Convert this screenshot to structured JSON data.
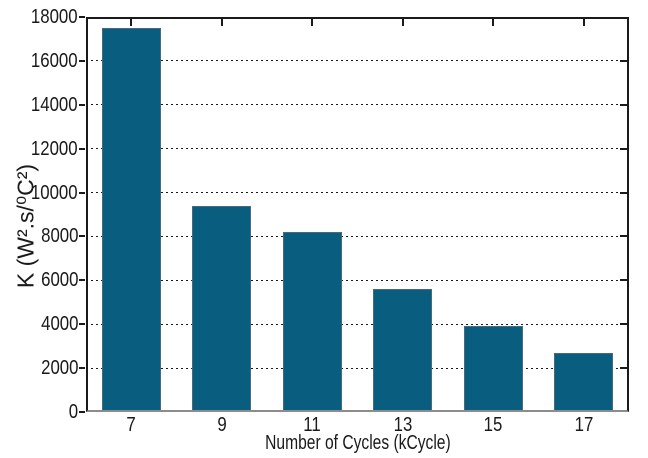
{
  "figure": {
    "background": "#ffffff"
  },
  "chart_data": {
    "type": "bar",
    "title": "",
    "xlabel": "Number of Cycles (kCycle)",
    "ylabel": "K (W².s/⁰C²)",
    "categories": [
      "7",
      "9",
      "11",
      "13",
      "15",
      "17"
    ],
    "values": [
      17500,
      9400,
      8200,
      5600,
      3900,
      2700
    ],
    "ylim": [
      0,
      18000
    ],
    "ytick_step": 2000,
    "ytick_labels": [
      "0",
      "2000",
      "4000",
      "6000",
      "8000",
      "10000",
      "12000",
      "14000",
      "16000",
      "18000"
    ],
    "grid": "horizontal-dashed",
    "legend": "none",
    "bar_width_fraction": 0.65,
    "bar_color": "#095d7f",
    "bar_edge_color": "#476b7d",
    "axis_color": "#1a1a1a",
    "baseline_color": "#8c8c8c",
    "text_color": "#1a1a1a"
  }
}
